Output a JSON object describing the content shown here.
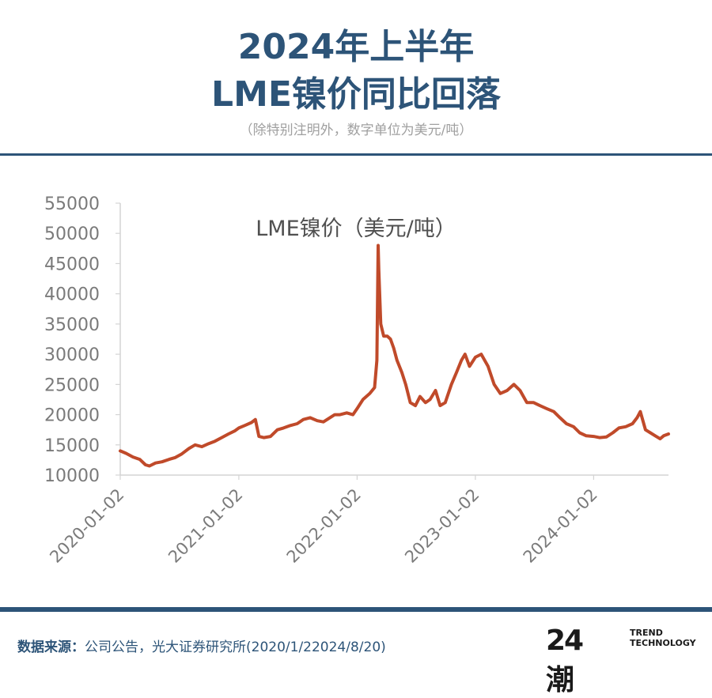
{
  "header": {
    "title_line1": "2024年上半年",
    "title_line2": "LME镍价同比回落",
    "subtitle": "（除特别注明外，数字单位为美元/吨）"
  },
  "footer": {
    "source_label": "数据来源：",
    "source_text": "公司公告，光大证券研究所(2020/1/22024/8/20)",
    "logo_mark": "24潮",
    "logo_line1": "TREND",
    "logo_line2": "TECHNOLOGY"
  },
  "colors": {
    "accent": "#2d5478",
    "series": "#c04a2a",
    "axis": "#d4d4d4",
    "tick_text": "#7a7a7a"
  },
  "chart_data": {
    "type": "line",
    "title": "LME镍价（美元/吨）",
    "xlabel": "",
    "ylabel": "",
    "ylim": [
      10000,
      55000
    ],
    "xlim": [
      "2020-01-02",
      "2024-08-20"
    ],
    "yticks": [
      10000,
      15000,
      20000,
      25000,
      30000,
      35000,
      40000,
      45000,
      50000,
      55000
    ],
    "xticks": [
      "2020-01-02",
      "2021-01-02",
      "2022-01-02",
      "2023-01-02",
      "2024-01-02"
    ],
    "grid": false,
    "legend": "none",
    "series": [
      {
        "name": "LME镍价（美元/吨）",
        "x": [
          "2020-01-02",
          "2020-01-20",
          "2020-02-10",
          "2020-03-02",
          "2020-03-20",
          "2020-04-01",
          "2020-04-20",
          "2020-05-10",
          "2020-06-01",
          "2020-06-20",
          "2020-07-10",
          "2020-08-01",
          "2020-08-20",
          "2020-09-10",
          "2020-10-01",
          "2020-10-20",
          "2020-11-10",
          "2020-12-01",
          "2020-12-20",
          "2021-01-02",
          "2021-01-20",
          "2021-02-10",
          "2021-02-22",
          "2021-03-05",
          "2021-03-20",
          "2021-04-10",
          "2021-05-01",
          "2021-05-20",
          "2021-06-10",
          "2021-07-01",
          "2021-07-20",
          "2021-08-10",
          "2021-09-01",
          "2021-09-20",
          "2021-10-10",
          "2021-10-25",
          "2021-11-10",
          "2021-12-01",
          "2021-12-20",
          "2022-01-02",
          "2022-01-20",
          "2022-02-10",
          "2022-02-25",
          "2022-03-04",
          "2022-03-08",
          "2022-03-10",
          "2022-03-16",
          "2022-03-25",
          "2022-04-05",
          "2022-04-15",
          "2022-04-25",
          "2022-05-05",
          "2022-05-20",
          "2022-06-01",
          "2022-06-15",
          "2022-07-01",
          "2022-07-15",
          "2022-08-01",
          "2022-08-15",
          "2022-09-01",
          "2022-09-15",
          "2022-10-01",
          "2022-10-20",
          "2022-11-05",
          "2022-11-20",
          "2022-12-01",
          "2022-12-15",
          "2023-01-02",
          "2023-01-20",
          "2023-02-10",
          "2023-03-01",
          "2023-03-20",
          "2023-04-10",
          "2023-05-01",
          "2023-05-20",
          "2023-06-10",
          "2023-07-01",
          "2023-07-20",
          "2023-08-10",
          "2023-09-01",
          "2023-09-20",
          "2023-10-10",
          "2023-11-01",
          "2023-11-20",
          "2023-12-10",
          "2024-01-02",
          "2024-01-20",
          "2024-02-10",
          "2024-03-01",
          "2024-03-20",
          "2024-04-10",
          "2024-05-01",
          "2024-05-15",
          "2024-05-25",
          "2024-06-10",
          "2024-06-25",
          "2024-07-10",
          "2024-07-25",
          "2024-08-05",
          "2024-08-20"
        ],
        "values": [
          14000,
          13600,
          13000,
          12600,
          11700,
          11500,
          12000,
          12200,
          12600,
          12900,
          13500,
          14400,
          15000,
          14700,
          15200,
          15600,
          16200,
          16800,
          17300,
          17800,
          18200,
          18700,
          19200,
          16400,
          16200,
          16400,
          17500,
          17800,
          18200,
          18500,
          19200,
          19500,
          19000,
          18800,
          19500,
          20000,
          20000,
          20300,
          20000,
          21000,
          22500,
          23500,
          24500,
          29000,
          48000,
          44000,
          35000,
          33000,
          33000,
          32500,
          31000,
          29000,
          27000,
          25000,
          22000,
          21500,
          23000,
          22000,
          22500,
          24000,
          21500,
          22000,
          25000,
          27000,
          29000,
          30000,
          28000,
          29500,
          30000,
          28000,
          25000,
          23500,
          24000,
          25000,
          24000,
          22000,
          22000,
          21500,
          21000,
          20500,
          19500,
          18500,
          18000,
          17000,
          16500,
          16400,
          16200,
          16300,
          17000,
          17800,
          18000,
          18500,
          19500,
          20500,
          17500,
          17000,
          16500,
          16000,
          16500,
          16800
        ]
      }
    ]
  }
}
